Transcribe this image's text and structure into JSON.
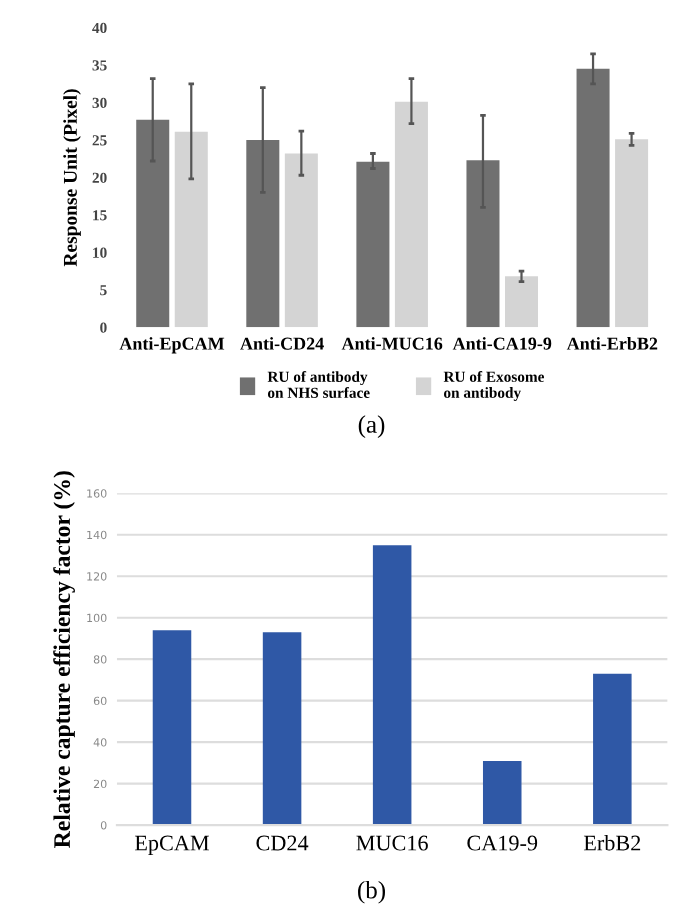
{
  "chart_data": [
    {
      "type": "bar",
      "ylabel": "Response Unit (Pixel)",
      "categories": [
        "Anti-EpCAM",
        "Anti-CD24",
        "Anti-MUC16",
        "Anti-CA19-9",
        "Anti-ErbB2"
      ],
      "series": [
        {
          "name": "RU of antibody\non NHS surface",
          "color": "#707070",
          "values": [
            27.7,
            25.0,
            22.1,
            22.3,
            34.5
          ],
          "errors": [
            [
              22.2,
              33.2
            ],
            [
              18.0,
              32.0
            ],
            [
              21.2,
              23.2
            ],
            [
              16.0,
              28.3
            ],
            [
              32.5,
              36.5
            ]
          ]
        },
        {
          "name": "RU of Exosome\non antibody",
          "color": "#d4d4d4",
          "values": [
            26.1,
            23.2,
            30.1,
            6.8,
            25.1
          ],
          "errors": [
            [
              19.8,
              32.5
            ],
            [
              20.3,
              26.2
            ],
            [
              27.2,
              33.2
            ],
            [
              6.1,
              7.5
            ],
            [
              24.3,
              25.9
            ]
          ]
        }
      ],
      "ylim": [
        0,
        40
      ],
      "yticks": [
        0,
        5,
        10,
        15,
        20,
        25,
        30,
        35,
        40
      ],
      "grid": false,
      "legend": "bottom",
      "annotations": [
        "(a)"
      ]
    },
    {
      "type": "bar",
      "ylabel": "Relative capture efficiency factor (%)",
      "categories": [
        "EpCAM",
        "CD24",
        "MUC16",
        "CA19-9",
        "ErbB2"
      ],
      "values": [
        94,
        93,
        135,
        31,
        73
      ],
      "color": "#2f58a6",
      "ylim": [
        0,
        160
      ],
      "yticks": [
        0,
        20,
        40,
        60,
        80,
        100,
        120,
        140,
        160
      ],
      "grid": "y",
      "annotations": [
        "(b)"
      ]
    }
  ]
}
